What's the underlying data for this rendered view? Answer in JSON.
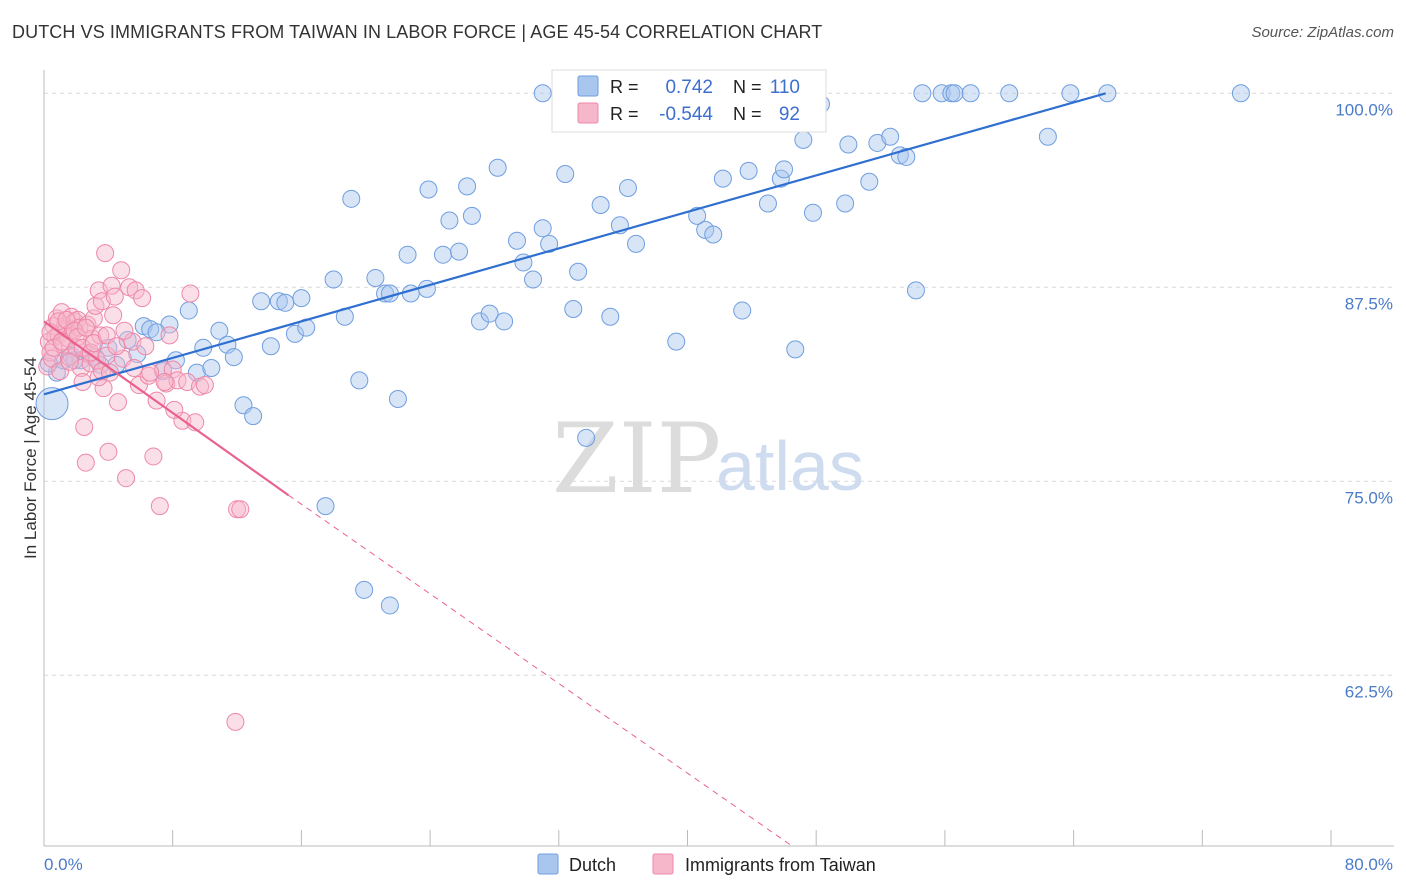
{
  "title": "DUTCH VS IMMIGRANTS FROM TAIWAN IN LABOR FORCE | AGE 45-54 CORRELATION CHART",
  "source": "Source: ZipAtlas.com",
  "watermark": {
    "zip": "ZIP",
    "atlas": "atlas"
  },
  "legend": {
    "rows": [
      {
        "r_label": "R =",
        "r_value": "0.742",
        "n_label": "N =",
        "n_value": "110"
      },
      {
        "r_label": "R =",
        "r_value": "-0.544",
        "n_label": "N =",
        "n_value": "92"
      }
    ]
  },
  "bottom_legend": [
    "Dutch",
    "Immigrants from Taiwan"
  ],
  "colors": {
    "blue_fill": "#a9c6ee",
    "blue_stroke": "#6f9ee0",
    "blue_line": "#2e6fd0",
    "pink_fill": "#f6b7cb",
    "pink_stroke": "#ee88a8",
    "pink_line": "#e9618c",
    "grid": "#d9d9d9",
    "tick_text": "#4a7bc8"
  },
  "chart_data": {
    "type": "scatter",
    "title": "DUTCH VS IMMIGRANTS FROM TAIWAN IN LABOR FORCE | AGE 45-54 CORRELATION CHART",
    "xlabel": "",
    "ylabel": "In Labor Force | Age 45-54",
    "xlim": [
      0,
      80
    ],
    "ylim": [
      51.5,
      101.5
    ],
    "x_tick_labels": [
      "0.0%",
      "80.0%"
    ],
    "y_ticks": [
      62.5,
      75.0,
      87.5,
      100.0
    ],
    "y_tick_labels": [
      "62.5%",
      "75.0%",
      "87.5%",
      "100.0%"
    ],
    "series": [
      {
        "name": "Dutch",
        "R": 0.742,
        "N": 110,
        "trend": {
          "x": [
            0.0,
            66.0
          ],
          "y": [
            80.6,
            100.0
          ]
        },
        "points": [
          [
            0.5,
            80.0
          ],
          [
            0.8,
            82.0
          ],
          [
            1.2,
            82.8
          ],
          [
            1.7,
            83.1
          ],
          [
            2.3,
            82.8
          ],
          [
            3.2,
            83.0
          ],
          [
            4.0,
            83.6
          ],
          [
            4.5,
            82.5
          ],
          [
            5.2,
            84.1
          ],
          [
            5.8,
            83.2
          ],
          [
            6.2,
            85.0
          ],
          [
            6.6,
            84.8
          ],
          [
            7.4,
            82.1
          ],
          [
            7.8,
            85.1
          ],
          [
            8.2,
            82.8
          ],
          [
            9.0,
            86.0
          ],
          [
            9.5,
            82.0
          ],
          [
            9.9,
            83.6
          ],
          [
            10.4,
            82.3
          ],
          [
            10.9,
            84.7
          ],
          [
            11.4,
            83.8
          ],
          [
            11.8,
            83.0
          ],
          [
            12.4,
            79.9
          ],
          [
            13.0,
            79.2
          ],
          [
            13.5,
            86.6
          ],
          [
            14.1,
            83.7
          ],
          [
            14.6,
            86.6
          ],
          [
            15.0,
            86.5
          ],
          [
            15.6,
            84.5
          ],
          [
            16.3,
            84.9
          ],
          [
            16.0,
            86.8
          ],
          [
            17.5,
            73.4
          ],
          [
            18.0,
            88.0
          ],
          [
            18.7,
            85.6
          ],
          [
            19.1,
            93.2
          ],
          [
            19.6,
            81.5
          ],
          [
            19.9,
            68.0
          ],
          [
            20.6,
            88.1
          ],
          [
            21.2,
            87.1
          ],
          [
            21.5,
            87.1
          ],
          [
            21.5,
            67.0
          ],
          [
            22.0,
            80.3
          ],
          [
            22.6,
            89.6
          ],
          [
            22.8,
            87.1
          ],
          [
            23.8,
            87.4
          ],
          [
            23.9,
            93.8
          ],
          [
            24.8,
            89.6
          ],
          [
            25.2,
            91.8
          ],
          [
            25.8,
            89.8
          ],
          [
            26.3,
            94.0
          ],
          [
            26.6,
            92.1
          ],
          [
            27.1,
            85.3
          ],
          [
            27.7,
            85.8
          ],
          [
            28.2,
            95.2
          ],
          [
            28.6,
            85.3
          ],
          [
            29.4,
            90.5
          ],
          [
            29.8,
            89.1
          ],
          [
            30.4,
            88.0
          ],
          [
            31.0,
            91.3
          ],
          [
            31.4,
            90.3
          ],
          [
            31.0,
            100.0
          ],
          [
            32.4,
            94.8
          ],
          [
            32.9,
            86.1
          ],
          [
            33.2,
            88.5
          ],
          [
            33.7,
            77.8
          ],
          [
            34.6,
            92.8
          ],
          [
            35.2,
            85.6
          ],
          [
            35.8,
            91.5
          ],
          [
            36.3,
            93.9
          ],
          [
            36.8,
            90.3
          ],
          [
            38.0,
            100.0
          ],
          [
            38.6,
            100.0
          ],
          [
            39.3,
            84.0
          ],
          [
            39.8,
            99.8
          ],
          [
            40.6,
            92.1
          ],
          [
            41.1,
            91.2
          ],
          [
            41.6,
            90.9
          ],
          [
            42.2,
            94.5
          ],
          [
            42.8,
            98.8
          ],
          [
            43.4,
            86.0
          ],
          [
            43.8,
            95.0
          ],
          [
            45.0,
            92.9
          ],
          [
            45.8,
            94.5
          ],
          [
            46.0,
            95.1
          ],
          [
            47.2,
            97.0
          ],
          [
            46.7,
            83.5
          ],
          [
            47.8,
            92.3
          ],
          [
            48.3,
            99.3
          ],
          [
            49.8,
            92.9
          ],
          [
            50.0,
            96.7
          ],
          [
            51.3,
            94.3
          ],
          [
            51.8,
            96.8
          ],
          [
            52.6,
            97.2
          ],
          [
            53.2,
            96.0
          ],
          [
            53.6,
            95.9
          ],
          [
            54.2,
            87.3
          ],
          [
            54.6,
            100.0
          ],
          [
            55.8,
            100.0
          ],
          [
            56.4,
            100.0
          ],
          [
            56.6,
            100.0
          ],
          [
            57.6,
            100.0
          ],
          [
            60.0,
            100.0
          ],
          [
            62.4,
            97.2
          ],
          [
            63.8,
            100.0
          ],
          [
            66.1,
            100.0
          ],
          [
            74.4,
            100.0
          ],
          [
            0.3,
            82.6
          ],
          [
            1.9,
            82.8
          ],
          [
            3.5,
            82.5
          ],
          [
            7.0,
            84.6
          ]
        ]
      },
      {
        "name": "Immigrants from Taiwan",
        "R": -0.544,
        "N": 92,
        "trend": {
          "x": [
            0.0,
            15.2
          ],
          "y": [
            85.3,
            74.1
          ]
        },
        "trend_dashed": {
          "x": [
            15.2,
            46.5
          ],
          "y": [
            74.1,
            51.5
          ]
        },
        "points": [
          [
            0.2,
            82.4
          ],
          [
            0.3,
            84.0
          ],
          [
            0.4,
            83.3
          ],
          [
            0.5,
            82.9
          ],
          [
            0.6,
            85.0
          ],
          [
            0.7,
            84.3
          ],
          [
            0.8,
            85.5
          ],
          [
            0.9,
            84.4
          ],
          [
            1.0,
            82.1
          ],
          [
            1.1,
            85.9
          ],
          [
            1.2,
            83.8
          ],
          [
            1.3,
            85.0
          ],
          [
            1.4,
            84.8
          ],
          [
            1.5,
            84.2
          ],
          [
            1.6,
            83.0
          ],
          [
            1.7,
            85.6
          ],
          [
            1.8,
            84.8
          ],
          [
            1.9,
            85.3
          ],
          [
            2.0,
            83.6
          ],
          [
            2.1,
            85.4
          ],
          [
            2.2,
            84.9
          ],
          [
            2.3,
            82.3
          ],
          [
            2.4,
            81.4
          ],
          [
            2.5,
            78.5
          ],
          [
            2.6,
            76.2
          ],
          [
            2.7,
            85.1
          ],
          [
            2.8,
            83.2
          ],
          [
            2.9,
            82.6
          ],
          [
            3.0,
            84.2
          ],
          [
            3.1,
            85.5
          ],
          [
            3.2,
            86.3
          ],
          [
            3.3,
            82.8
          ],
          [
            3.4,
            87.3
          ],
          [
            3.5,
            84.4
          ],
          [
            3.6,
            86.6
          ],
          [
            3.7,
            81.0
          ],
          [
            3.8,
            89.7
          ],
          [
            3.9,
            83.1
          ],
          [
            4.0,
            76.9
          ],
          [
            4.2,
            87.6
          ],
          [
            4.3,
            85.7
          ],
          [
            4.4,
            86.9
          ],
          [
            4.6,
            80.1
          ],
          [
            4.8,
            88.6
          ],
          [
            4.9,
            82.9
          ],
          [
            5.1,
            75.2
          ],
          [
            5.3,
            87.5
          ],
          [
            5.5,
            84.0
          ],
          [
            5.7,
            87.3
          ],
          [
            5.9,
            81.2
          ],
          [
            6.1,
            86.8
          ],
          [
            6.3,
            83.7
          ],
          [
            6.5,
            81.8
          ],
          [
            6.8,
            76.6
          ],
          [
            7.0,
            80.2
          ],
          [
            7.2,
            73.4
          ],
          [
            7.4,
            82.2
          ],
          [
            7.6,
            81.3
          ],
          [
            7.8,
            84.4
          ],
          [
            8.0,
            82.2
          ],
          [
            8.3,
            81.5
          ],
          [
            8.6,
            78.9
          ],
          [
            8.9,
            81.4
          ],
          [
            9.1,
            87.1
          ],
          [
            9.4,
            78.8
          ],
          [
            9.7,
            81.1
          ],
          [
            10.0,
            81.2
          ],
          [
            12.0,
            73.2
          ],
          [
            12.2,
            73.2
          ],
          [
            11.9,
            59.5
          ],
          [
            0.4,
            84.6
          ],
          [
            0.6,
            83.6
          ],
          [
            0.9,
            85.3
          ],
          [
            1.1,
            84.0
          ],
          [
            1.4,
            85.4
          ],
          [
            1.6,
            82.7
          ],
          [
            1.9,
            84.7
          ],
          [
            2.1,
            84.3
          ],
          [
            2.4,
            83.6
          ],
          [
            2.6,
            84.9
          ],
          [
            2.9,
            83.3
          ],
          [
            3.1,
            83.9
          ],
          [
            3.4,
            81.7
          ],
          [
            3.6,
            82.1
          ],
          [
            3.9,
            84.4
          ],
          [
            4.1,
            82.0
          ],
          [
            4.5,
            83.7
          ],
          [
            5.0,
            84.7
          ],
          [
            5.6,
            82.3
          ],
          [
            6.6,
            82.0
          ],
          [
            7.5,
            81.4
          ],
          [
            8.1,
            79.6
          ]
        ]
      }
    ]
  }
}
